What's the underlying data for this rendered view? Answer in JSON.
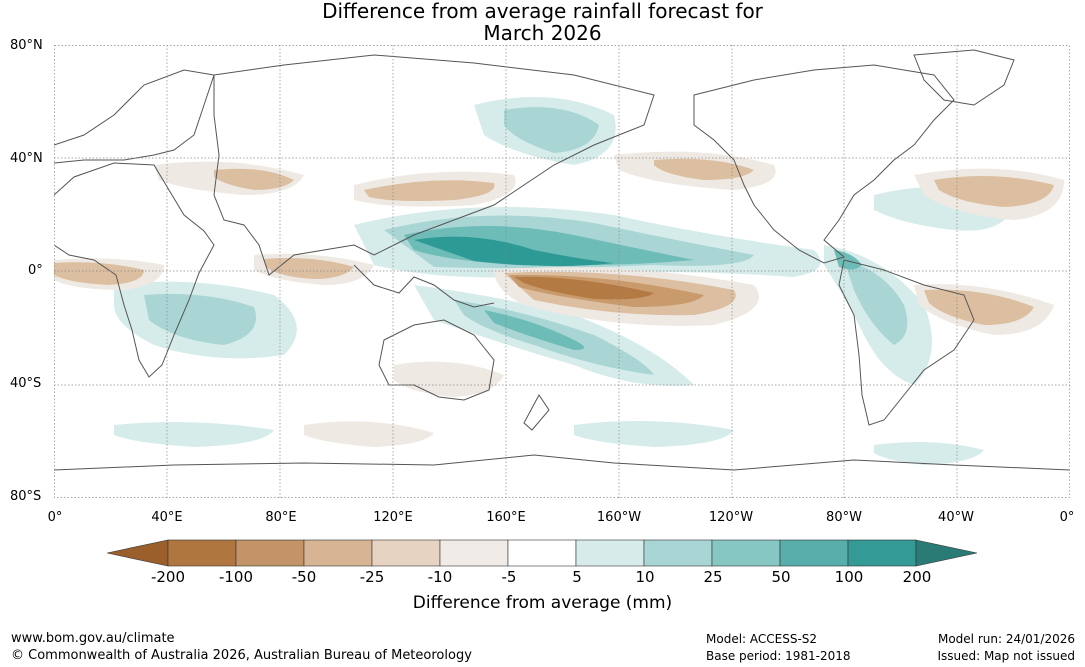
{
  "title": {
    "line1": "Difference from average rainfall forecast for",
    "line2": "March 2026"
  },
  "map": {
    "lat_labels": [
      "80°N",
      "40°N",
      "0°",
      "40°S",
      "80°S"
    ],
    "lon_labels": [
      "0°",
      "40°E",
      "80°E",
      "120°E",
      "160°E",
      "160°W",
      "120°W",
      "80°W",
      "40°W",
      "0°"
    ],
    "colors": {
      "dry_strong": "#b47a44",
      "dry_mod": "#c89a6c",
      "dry_light": "#dcbfa0",
      "dry_faint": "#efe9e4",
      "wet_faint": "#d6ecea",
      "wet_light": "#a9d6d4",
      "wet_mod": "#6dbcb8",
      "wet_strong": "#2e9a95",
      "coast": "#555555",
      "grid": "#888888"
    }
  },
  "colorbar": {
    "ticks": [
      "-200",
      "-100",
      "-50",
      "-25",
      "-10",
      "-5",
      "5",
      "10",
      "25",
      "50",
      "100",
      "200"
    ],
    "colors": [
      "#9a5f2a",
      "#b07640",
      "#c29467",
      "#d7b594",
      "#e6d3c2",
      "#f0ebe7",
      "#ffffff",
      "#d7ebea",
      "#a9d6d4",
      "#86c6c3",
      "#58aeaa",
      "#349a95",
      "#2a7a76"
    ],
    "label": "Difference from average (mm)"
  },
  "footer": {
    "url": "www.bom.gov.au/climate",
    "copyright": "© Commonwealth of Australia 2026, Australian Bureau of Meteorology",
    "model": "Model: ACCESS-S2",
    "base_period": "Base period: 1981-2018",
    "model_run": "Model run: 24/01/2026",
    "issued": "Issued: Map not issued"
  }
}
